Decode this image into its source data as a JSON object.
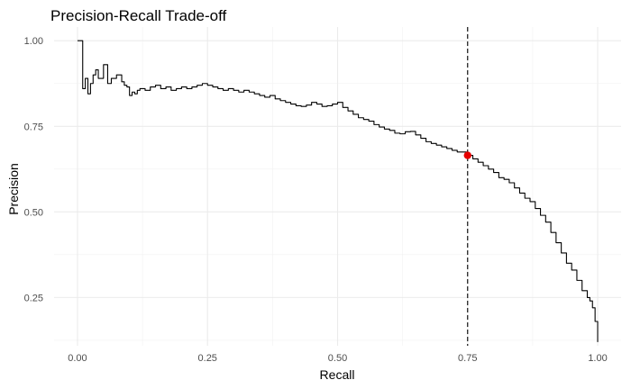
{
  "chart_data": {
    "type": "line",
    "title": "Precision-Recall Trade-off",
    "xlabel": "Recall",
    "ylabel": "Precision",
    "xlim": [
      -0.045,
      1.045
    ],
    "ylim": [
      0.109,
      1.04
    ],
    "x_ticks": [
      0.0,
      0.25,
      0.5,
      0.75,
      1.0
    ],
    "x_tick_labels": [
      "0.00",
      "0.25",
      "0.50",
      "0.75",
      "1.00"
    ],
    "y_ticks": [
      0.25,
      0.5,
      0.75,
      1.0
    ],
    "y_tick_labels": [
      "0.25",
      "0.50",
      "0.75",
      "1.00"
    ],
    "grid": true,
    "legend": "none",
    "line_color": "#000000",
    "series": [
      {
        "x": [
          0.0,
          0.008,
          0.01,
          0.015,
          0.02,
          0.025,
          0.03,
          0.035,
          0.04,
          0.05,
          0.058,
          0.065,
          0.075,
          0.085,
          0.09,
          0.095,
          0.1,
          0.105,
          0.11,
          0.115,
          0.12,
          0.13,
          0.14,
          0.15,
          0.16,
          0.17,
          0.18,
          0.19,
          0.2,
          0.21,
          0.22,
          0.23,
          0.24,
          0.25,
          0.26,
          0.27,
          0.28,
          0.29,
          0.3,
          0.31,
          0.32,
          0.33,
          0.34,
          0.35,
          0.36,
          0.37,
          0.38,
          0.39,
          0.4,
          0.41,
          0.42,
          0.43,
          0.44,
          0.45,
          0.46,
          0.47,
          0.48,
          0.49,
          0.5,
          0.51,
          0.52,
          0.53,
          0.54,
          0.55,
          0.56,
          0.57,
          0.58,
          0.59,
          0.6,
          0.61,
          0.62,
          0.63,
          0.64,
          0.65,
          0.66,
          0.67,
          0.68,
          0.69,
          0.7,
          0.71,
          0.72,
          0.73,
          0.74,
          0.75,
          0.76,
          0.77,
          0.78,
          0.79,
          0.8,
          0.81,
          0.82,
          0.83,
          0.84,
          0.85,
          0.86,
          0.87,
          0.88,
          0.89,
          0.9,
          0.91,
          0.92,
          0.93,
          0.94,
          0.95,
          0.96,
          0.97,
          0.98,
          0.985,
          0.99,
          0.995,
          1.0
        ],
        "y": [
          1.0,
          1.0,
          0.86,
          0.89,
          0.845,
          0.875,
          0.9,
          0.915,
          0.89,
          0.93,
          0.875,
          0.89,
          0.9,
          0.88,
          0.87,
          0.865,
          0.84,
          0.85,
          0.845,
          0.855,
          0.86,
          0.855,
          0.865,
          0.87,
          0.86,
          0.865,
          0.855,
          0.86,
          0.865,
          0.86,
          0.865,
          0.87,
          0.875,
          0.87,
          0.865,
          0.86,
          0.855,
          0.86,
          0.855,
          0.85,
          0.855,
          0.85,
          0.845,
          0.84,
          0.835,
          0.84,
          0.83,
          0.825,
          0.82,
          0.815,
          0.81,
          0.808,
          0.812,
          0.82,
          0.815,
          0.808,
          0.81,
          0.815,
          0.82,
          0.805,
          0.795,
          0.785,
          0.775,
          0.77,
          0.765,
          0.755,
          0.748,
          0.742,
          0.738,
          0.73,
          0.728,
          0.734,
          0.735,
          0.725,
          0.715,
          0.705,
          0.7,
          0.695,
          0.69,
          0.685,
          0.68,
          0.675,
          0.675,
          0.665,
          0.655,
          0.645,
          0.635,
          0.625,
          0.615,
          0.6,
          0.595,
          0.585,
          0.57,
          0.555,
          0.54,
          0.53,
          0.51,
          0.49,
          0.47,
          0.44,
          0.41,
          0.38,
          0.35,
          0.33,
          0.3,
          0.27,
          0.25,
          0.24,
          0.22,
          0.18,
          0.12
        ]
      }
    ],
    "annotations": {
      "threshold_recall": 0.75,
      "threshold_line_style": "dashed",
      "highlight_point": {
        "x": 0.75,
        "y": 0.665,
        "color": "#e60000"
      }
    }
  }
}
